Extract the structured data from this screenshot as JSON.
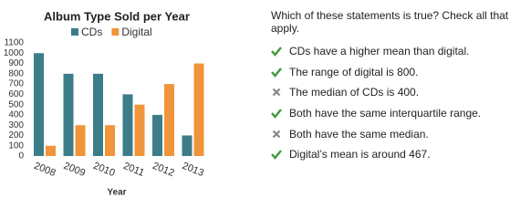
{
  "chart_data": {
    "type": "bar",
    "title": "Album Type Sold per Year",
    "xlabel": "Year",
    "categories": [
      "2008",
      "2009",
      "2010",
      "2011",
      "2012",
      "2013"
    ],
    "series": [
      {
        "name": "CDs",
        "color": "#3b7d89",
        "values": [
          1000,
          800,
          800,
          600,
          400,
          200
        ]
      },
      {
        "name": "Digital",
        "color": "#f0953b",
        "values": [
          100,
          300,
          300,
          500,
          700,
          900
        ]
      }
    ],
    "ylim": [
      0,
      1100
    ],
    "yticks": [
      0,
      100,
      200,
      300,
      400,
      500,
      600,
      700,
      800,
      900,
      1000,
      1100
    ],
    "grid": false
  },
  "question": "Which of these statements is true? Check all that apply.",
  "statements": [
    "CDs have a higher mean than digital.",
    "The range of digital is 800.",
    "The median of CDs is 400.",
    "Both have the same interquartile range.",
    "Both have the same median.",
    "Digital’s mean is around 467."
  ]
}
